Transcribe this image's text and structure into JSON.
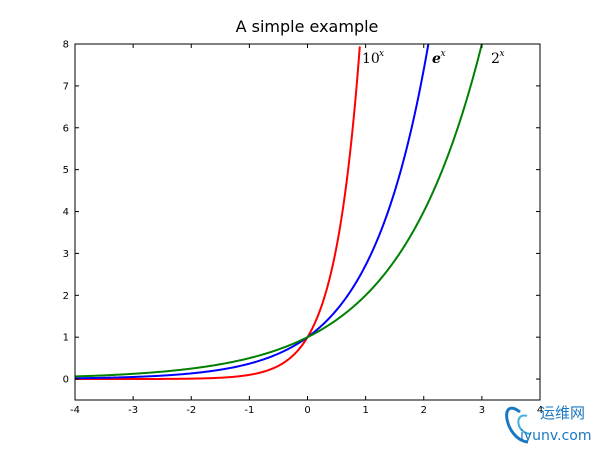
{
  "chart_data": {
    "type": "line",
    "title": "A simple example",
    "xlabel": "",
    "ylabel": "",
    "xlim": [
      -4,
      4
    ],
    "ylim": [
      -0.5,
      8
    ],
    "x_ticks": [
      -4,
      -3,
      -2,
      -1,
      0,
      1,
      2,
      3,
      4
    ],
    "y_ticks": [
      0,
      1,
      2,
      3,
      4,
      5,
      6,
      7,
      8
    ],
    "x_tick_labels": [
      "-4",
      "-3",
      "-2",
      "-1",
      "0",
      "1",
      "2",
      "3",
      "4"
    ],
    "y_tick_labels": [
      "0",
      "1",
      "2",
      "3",
      "4",
      "5",
      "6",
      "7",
      "8"
    ],
    "grid": false,
    "series": [
      {
        "color": "#ff0000",
        "x": [
          -4,
          -3,
          -2,
          -1,
          -0.5,
          0,
          0.25,
          0.5,
          0.75,
          0.9
        ],
        "y": [
          0.0001,
          0.001,
          0.01,
          0.1,
          0.316,
          1,
          1.778,
          3.162,
          5.623,
          7.943
        ]
      },
      {
        "color": "#0000ff",
        "x": [
          -4,
          -3,
          -2,
          -1,
          0,
          0.5,
          1,
          1.5,
          2,
          2.08
        ],
        "y": [
          0.018,
          0.05,
          0.135,
          0.368,
          1,
          1.649,
          2.718,
          4.482,
          7.389,
          8.0
        ]
      },
      {
        "color": "#008000",
        "x": [
          -4,
          -3,
          -2,
          -1,
          0,
          1,
          2,
          2.5,
          3
        ],
        "y": [
          0.0625,
          0.125,
          0.25,
          0.5,
          1,
          2,
          4,
          5.657,
          8
        ]
      }
    ],
    "annotations": [
      {
        "base": "10",
        "sup": "x",
        "style": "normal"
      },
      {
        "base": "e",
        "sup": "x",
        "style": "bold-italic"
      },
      {
        "base": "2",
        "sup": "x",
        "style": "normal"
      }
    ]
  },
  "watermark": {
    "text_cn": "运维网",
    "text_url": "iyunv.com"
  }
}
